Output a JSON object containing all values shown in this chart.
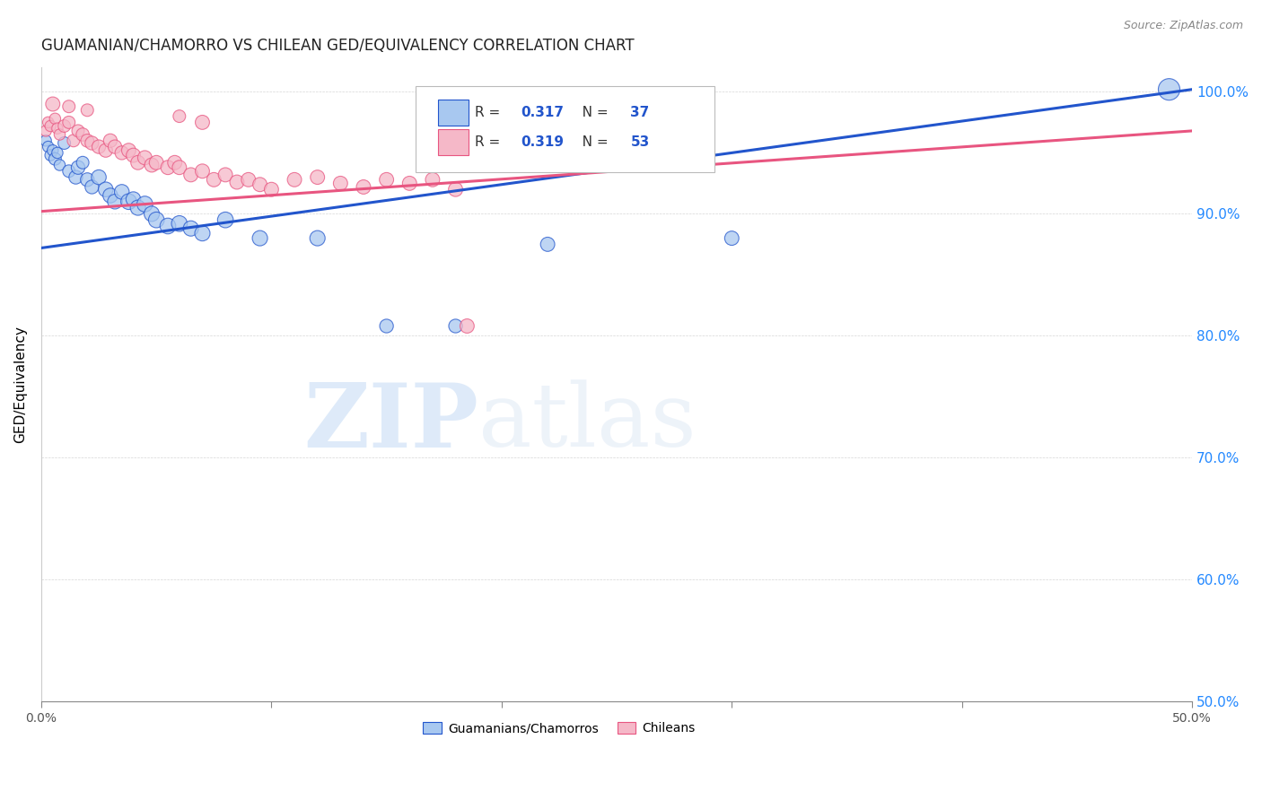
{
  "title": "GUAMANIAN/CHAMORRO VS CHILEAN GED/EQUIVALENCY CORRELATION CHART",
  "source": "Source: ZipAtlas.com",
  "ylabel": "GED/Equivalency",
  "xlim": [
    0.0,
    0.5
  ],
  "ylim": [
    0.5,
    1.02
  ],
  "xtick_positions": [
    0.0,
    0.1,
    0.2,
    0.3,
    0.4,
    0.5
  ],
  "xticklabels": [
    "0.0%",
    "",
    "",
    "",
    "",
    "50.0%"
  ],
  "ytick_positions": [
    0.5,
    0.6,
    0.7,
    0.8,
    0.9,
    1.0
  ],
  "ytick_labels": [
    "50.0%",
    "60.0%",
    "70.0%",
    "80.0%",
    "90.0%",
    "100.0%"
  ],
  "legend_R_blue": "0.317",
  "legend_N_blue": "37",
  "legend_R_pink": "0.319",
  "legend_N_pink": "53",
  "blue_color": "#a8c8f0",
  "pink_color": "#f5b8c8",
  "line_blue": "#2255cc",
  "line_pink": "#e85580",
  "watermark_zip": "ZIP",
  "watermark_atlas": "atlas",
  "blue_line": [
    [
      0.0,
      0.872
    ],
    [
      0.5,
      1.002
    ]
  ],
  "pink_line": [
    [
      0.0,
      0.902
    ],
    [
      0.5,
      0.968
    ]
  ],
  "blue_scatter": [
    [
      0.002,
      0.96
    ],
    [
      0.003,
      0.955
    ],
    [
      0.004,
      0.948
    ],
    [
      0.005,
      0.952
    ],
    [
      0.006,
      0.945
    ],
    [
      0.007,
      0.95
    ],
    [
      0.008,
      0.94
    ],
    [
      0.01,
      0.958
    ],
    [
      0.012,
      0.935
    ],
    [
      0.015,
      0.93
    ],
    [
      0.016,
      0.938
    ],
    [
      0.018,
      0.942
    ],
    [
      0.02,
      0.928
    ],
    [
      0.022,
      0.922
    ],
    [
      0.025,
      0.93
    ],
    [
      0.028,
      0.92
    ],
    [
      0.03,
      0.915
    ],
    [
      0.032,
      0.91
    ],
    [
      0.035,
      0.918
    ],
    [
      0.038,
      0.91
    ],
    [
      0.04,
      0.912
    ],
    [
      0.042,
      0.905
    ],
    [
      0.045,
      0.908
    ],
    [
      0.048,
      0.9
    ],
    [
      0.05,
      0.895
    ],
    [
      0.055,
      0.89
    ],
    [
      0.06,
      0.892
    ],
    [
      0.065,
      0.888
    ],
    [
      0.07,
      0.884
    ],
    [
      0.08,
      0.895
    ],
    [
      0.095,
      0.88
    ],
    [
      0.12,
      0.88
    ],
    [
      0.15,
      0.808
    ],
    [
      0.18,
      0.808
    ],
    [
      0.22,
      0.875
    ],
    [
      0.3,
      0.88
    ],
    [
      0.49,
      1.002
    ]
  ],
  "blue_sizes": [
    80,
    80,
    80,
    80,
    100,
    80,
    80,
    100,
    100,
    120,
    120,
    100,
    120,
    120,
    140,
    140,
    140,
    140,
    140,
    160,
    140,
    150,
    160,
    150,
    160,
    160,
    160,
    150,
    150,
    160,
    150,
    150,
    120,
    120,
    130,
    130,
    300
  ],
  "pink_scatter": [
    [
      0.002,
      0.968
    ],
    [
      0.003,
      0.975
    ],
    [
      0.004,
      0.972
    ],
    [
      0.006,
      0.978
    ],
    [
      0.007,
      0.97
    ],
    [
      0.008,
      0.965
    ],
    [
      0.01,
      0.972
    ],
    [
      0.012,
      0.975
    ],
    [
      0.014,
      0.96
    ],
    [
      0.016,
      0.968
    ],
    [
      0.018,
      0.965
    ],
    [
      0.02,
      0.96
    ],
    [
      0.022,
      0.958
    ],
    [
      0.025,
      0.955
    ],
    [
      0.028,
      0.952
    ],
    [
      0.03,
      0.96
    ],
    [
      0.032,
      0.955
    ],
    [
      0.035,
      0.95
    ],
    [
      0.038,
      0.952
    ],
    [
      0.04,
      0.948
    ],
    [
      0.042,
      0.942
    ],
    [
      0.045,
      0.946
    ],
    [
      0.048,
      0.94
    ],
    [
      0.05,
      0.942
    ],
    [
      0.055,
      0.938
    ],
    [
      0.058,
      0.942
    ],
    [
      0.06,
      0.938
    ],
    [
      0.065,
      0.932
    ],
    [
      0.07,
      0.935
    ],
    [
      0.075,
      0.928
    ],
    [
      0.08,
      0.932
    ],
    [
      0.085,
      0.926
    ],
    [
      0.09,
      0.928
    ],
    [
      0.095,
      0.924
    ],
    [
      0.1,
      0.92
    ],
    [
      0.11,
      0.928
    ],
    [
      0.12,
      0.93
    ],
    [
      0.13,
      0.925
    ],
    [
      0.14,
      0.922
    ],
    [
      0.15,
      0.928
    ],
    [
      0.16,
      0.925
    ],
    [
      0.17,
      0.928
    ],
    [
      0.18,
      0.92
    ],
    [
      0.2,
      0.95
    ],
    [
      0.21,
      0.948
    ],
    [
      0.25,
      0.96
    ],
    [
      0.28,
      0.958
    ],
    [
      0.005,
      0.99
    ],
    [
      0.012,
      0.988
    ],
    [
      0.02,
      0.985
    ],
    [
      0.06,
      0.98
    ],
    [
      0.07,
      0.975
    ],
    [
      0.185,
      0.808
    ]
  ],
  "pink_sizes": [
    80,
    80,
    80,
    80,
    80,
    80,
    100,
    100,
    100,
    100,
    110,
    110,
    120,
    120,
    120,
    120,
    120,
    120,
    130,
    130,
    130,
    130,
    130,
    130,
    130,
    130,
    130,
    130,
    130,
    130,
    130,
    130,
    130,
    130,
    130,
    130,
    130,
    130,
    130,
    130,
    130,
    130,
    130,
    130,
    130,
    130,
    130,
    130,
    100,
    100,
    100,
    130,
    130
  ]
}
